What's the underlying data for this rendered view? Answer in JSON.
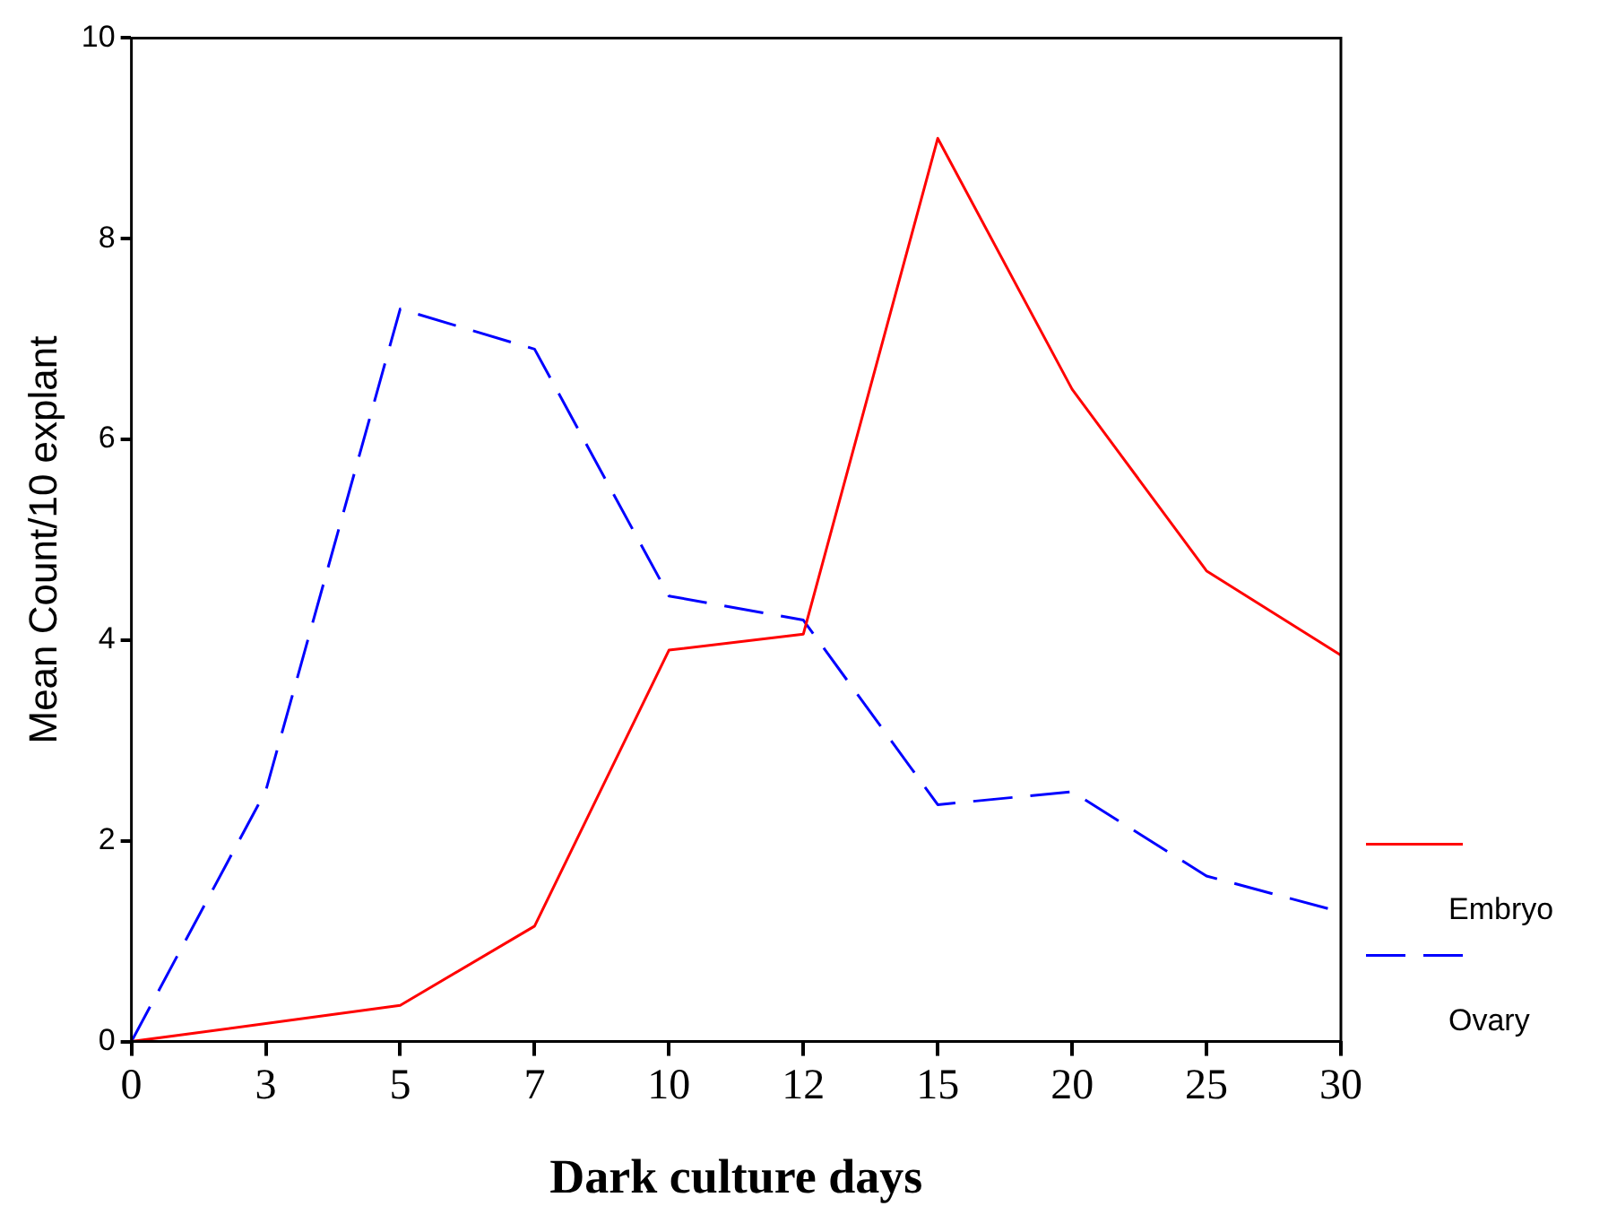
{
  "chart_data": {
    "type": "line",
    "xlabel": "Dark culture days",
    "ylabel": "Mean Count/10 explant",
    "categories": [
      "0",
      "3",
      "5",
      "7",
      "10",
      "12",
      "15",
      "20",
      "25",
      "30"
    ],
    "series": [
      {
        "name": "Embryo",
        "color": "#ff0000",
        "line_style": "solid",
        "values": [
          0,
          0.18,
          0.36,
          1.15,
          3.9,
          4.06,
          9.0,
          6.5,
          4.69,
          3.85
        ]
      },
      {
        "name": "Ovary",
        "color": "#0000ff",
        "line_style": "dashed",
        "values": [
          0,
          2.5,
          7.3,
          6.9,
          4.44,
          4.2,
          2.36,
          2.49,
          1.65,
          1.29
        ]
      }
    ],
    "ylim": [
      0,
      10
    ],
    "yticks": [
      0,
      2,
      4,
      6,
      8,
      10
    ],
    "grid": false,
    "legend": "right",
    "marker": "none"
  }
}
